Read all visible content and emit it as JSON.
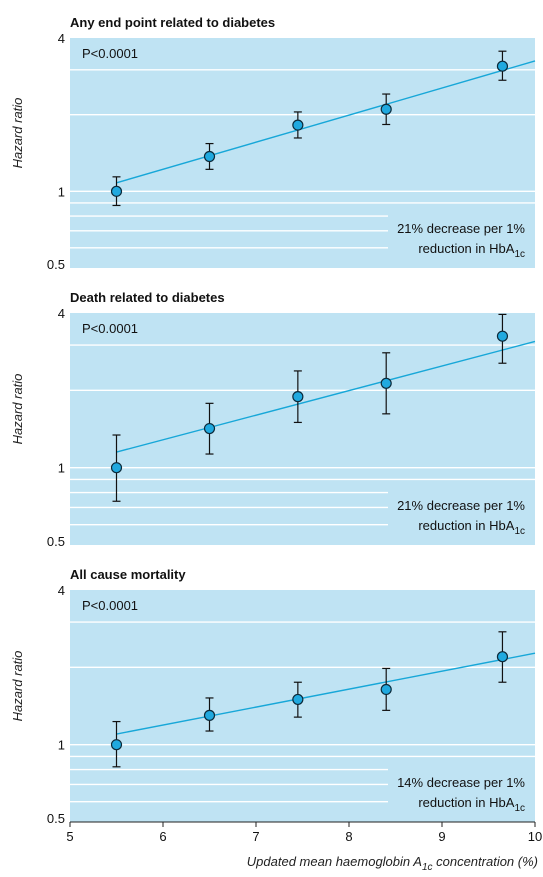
{
  "colors": {
    "panel_bg": "#bfe3f3",
    "grid": "#ffffff",
    "fit_line": "#17a7d8",
    "marker_fill": "#20a9df",
    "marker_edge": "#0b2a3a",
    "error_bar": "#111111"
  },
  "chart_data": [
    {
      "type": "scatter",
      "title": "Any end point related to diabetes",
      "ylabel": "Hazard ratio",
      "yscale": "log",
      "ylim": [
        0.5,
        4
      ],
      "xlim": [
        5,
        10
      ],
      "yticks": [
        "0.5",
        "1",
        "4"
      ],
      "p_value": "P<0.0001",
      "annotation": {
        "line1": "21% decrease per 1%",
        "line2_prefix": "reduction in HbA",
        "line2_sub": "1c"
      },
      "points": [
        {
          "x": 5.5,
          "y": 1.0,
          "lo": 0.88,
          "hi": 1.14
        },
        {
          "x": 6.5,
          "y": 1.37,
          "lo": 1.22,
          "hi": 1.54
        },
        {
          "x": 7.45,
          "y": 1.82,
          "lo": 1.62,
          "hi": 2.05
        },
        {
          "x": 8.4,
          "y": 2.1,
          "lo": 1.83,
          "hi": 2.41
        },
        {
          "x": 9.65,
          "y": 3.1,
          "lo": 2.73,
          "hi": 3.55
        }
      ],
      "fit": {
        "x": [
          5.5,
          10
        ],
        "y": [
          1.08,
          3.25
        ]
      }
    },
    {
      "type": "scatter",
      "title": "Death related to diabetes",
      "ylabel": "Hazard ratio",
      "yscale": "log",
      "ylim": [
        0.5,
        4
      ],
      "xlim": [
        5,
        10
      ],
      "yticks": [
        "0.5",
        "1",
        "4"
      ],
      "p_value": "P<0.0001",
      "annotation": {
        "line1": "21% decrease per 1%",
        "line2_prefix": "reduction in HbA",
        "line2_sub": "1c"
      },
      "points": [
        {
          "x": 5.5,
          "y": 1.0,
          "lo": 0.74,
          "hi": 1.34
        },
        {
          "x": 6.5,
          "y": 1.42,
          "lo": 1.13,
          "hi": 1.78
        },
        {
          "x": 7.45,
          "y": 1.89,
          "lo": 1.5,
          "hi": 2.38
        },
        {
          "x": 8.4,
          "y": 2.13,
          "lo": 1.62,
          "hi": 2.8
        },
        {
          "x": 9.65,
          "y": 3.25,
          "lo": 2.55,
          "hi": 3.95
        }
      ],
      "fit": {
        "x": [
          5.5,
          10
        ],
        "y": [
          1.15,
          3.1
        ]
      }
    },
    {
      "type": "scatter",
      "title": "All cause mortality",
      "ylabel": "Hazard ratio",
      "yscale": "log",
      "ylim": [
        0.5,
        4
      ],
      "xlim": [
        5,
        10
      ],
      "xlabel": "Updated mean haemoglobin A1c concentration (%)",
      "xticks": [
        "5",
        "6",
        "7",
        "8",
        "9",
        "10"
      ],
      "yticks": [
        "0.5",
        "1",
        "4"
      ],
      "p_value": "P<0.0001",
      "annotation": {
        "line1": "14% decrease per 1%",
        "line2_prefix": "reduction in HbA",
        "line2_sub": "1c"
      },
      "points": [
        {
          "x": 5.5,
          "y": 1.0,
          "lo": 0.82,
          "hi": 1.23
        },
        {
          "x": 6.5,
          "y": 1.3,
          "lo": 1.13,
          "hi": 1.52
        },
        {
          "x": 7.45,
          "y": 1.5,
          "lo": 1.28,
          "hi": 1.75
        },
        {
          "x": 8.4,
          "y": 1.64,
          "lo": 1.36,
          "hi": 1.98
        },
        {
          "x": 9.65,
          "y": 2.2,
          "lo": 1.75,
          "hi": 2.75
        }
      ],
      "fit": {
        "x": [
          5.5,
          10
        ],
        "y": [
          1.1,
          2.27
        ]
      }
    }
  ],
  "xaxis": {
    "label_prefix": "Updated mean haemoglobin A",
    "label_sub": "1c",
    "label_suffix": " concentration (%)"
  }
}
